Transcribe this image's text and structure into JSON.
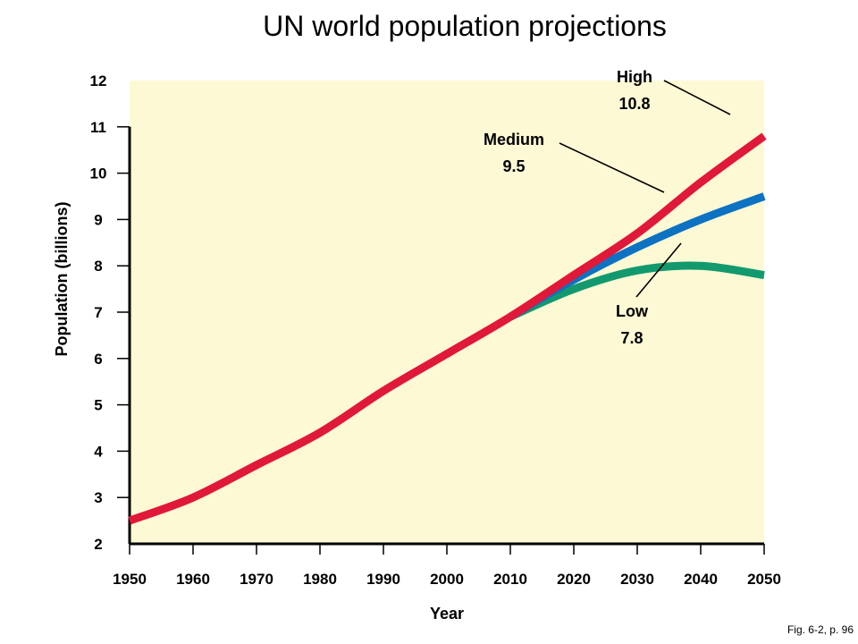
{
  "footer_note": "Fig. 6-2, p. 96",
  "chart_data": {
    "type": "line",
    "title": "UN world population projections",
    "xlabel": "Year",
    "ylabel": "Population (billions)",
    "xlim": [
      1950,
      2050
    ],
    "ylim": [
      2,
      12
    ],
    "x_ticks": [
      1950,
      1960,
      1970,
      1980,
      1990,
      2000,
      2010,
      2020,
      2030,
      2040,
      2050
    ],
    "y_ticks": [
      2,
      3,
      4,
      5,
      6,
      7,
      8,
      9,
      10,
      11,
      12
    ],
    "background_color": "#fdf9d4",
    "series": [
      {
        "name": "High",
        "label": "10.8",
        "color": "#e0183a",
        "x": [
          1950,
          1960,
          1970,
          1980,
          1990,
          2000,
          2010,
          2020,
          2030,
          2040,
          2050
        ],
        "y": [
          2.5,
          3.0,
          3.7,
          4.4,
          5.3,
          6.1,
          6.9,
          7.8,
          8.7,
          9.8,
          10.8
        ]
      },
      {
        "name": "Medium",
        "label": "9.5",
        "color": "#0d72c2",
        "x": [
          2010,
          2020,
          2030,
          2040,
          2050
        ],
        "y": [
          6.9,
          7.7,
          8.4,
          9.0,
          9.5
        ]
      },
      {
        "name": "Low",
        "label": "7.8",
        "color": "#13996e",
        "x": [
          2010,
          2020,
          2030,
          2040,
          2050
        ],
        "y": [
          6.9,
          7.5,
          7.9,
          8.0,
          7.8
        ]
      }
    ]
  }
}
